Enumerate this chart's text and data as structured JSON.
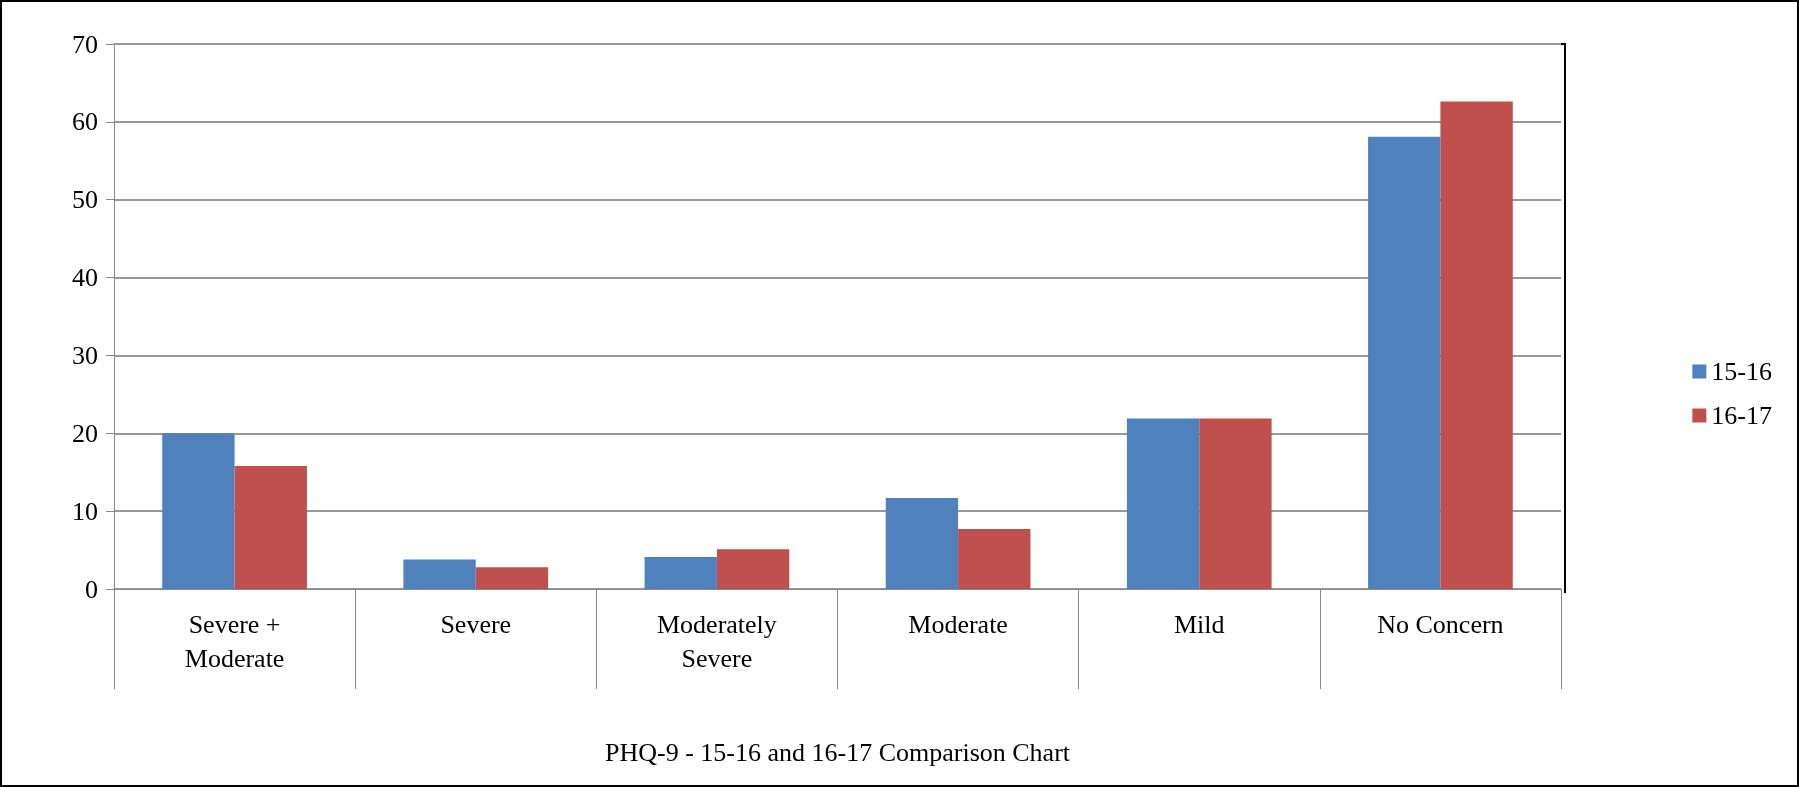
{
  "chart_data": {
    "type": "bar",
    "xlabel": "PHQ-9 - 15-16 and 16-17 Comparison Chart",
    "categories": [
      "Severe +\nModerate",
      "Severe",
      "Moderately\nSevere",
      "Moderate",
      "Mild",
      "No Concern"
    ],
    "series": [
      {
        "name": "15-16",
        "color": "#4f81bd",
        "values": [
          20,
          3.8,
          4.1,
          11.7,
          21.9,
          58.1
        ]
      },
      {
        "name": "16-17",
        "color": "#c0504d",
        "values": [
          15.8,
          2.8,
          5.1,
          7.7,
          21.9,
          62.6
        ]
      }
    ],
    "ylim": [
      0,
      70
    ],
    "yticks": [
      0,
      10,
      20,
      30,
      40,
      50,
      60,
      70
    ],
    "grid": "y",
    "legend": "right"
  }
}
